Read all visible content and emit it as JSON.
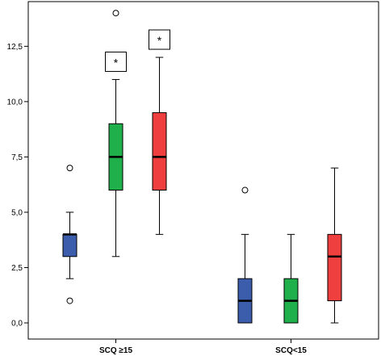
{
  "chart_data": {
    "type": "boxplot",
    "categories": [
      "SCQ ≥15",
      "SCQ<15"
    ],
    "y_tick_labels": [
      "0,0",
      "2,5",
      "5,0",
      "7,5",
      "10,0",
      "12,5"
    ],
    "y_ticks": [
      0,
      2.5,
      5,
      7.5,
      10,
      12.5
    ],
    "ylim": [
      0,
      14.3
    ],
    "grid": false,
    "colors": [
      "#3b5dab",
      "#20b04b",
      "#ef3f3f"
    ],
    "boxes": [
      {
        "category": "SCQ ≥15",
        "color": "#3b5dab",
        "whisker_low": 2,
        "q1": 3,
        "median": 4,
        "q3": 4,
        "whisker_high": 5,
        "outliers": [
          1,
          7
        ]
      },
      {
        "category": "SCQ ≥15",
        "color": "#20b04b",
        "whisker_low": 3,
        "q1": 6,
        "median": 7.5,
        "q3": 9,
        "whisker_high": 11,
        "outliers": [
          14
        ]
      },
      {
        "category": "SCQ ≥15",
        "color": "#ef3f3f",
        "whisker_low": 4,
        "q1": 6,
        "median": 7.5,
        "q3": 9.5,
        "whisker_high": 12,
        "outliers": []
      },
      {
        "category": "SCQ<15",
        "color": "#3b5dab",
        "whisker_low": 0,
        "q1": 0,
        "median": 1,
        "q3": 2,
        "whisker_high": 4,
        "outliers": [
          6
        ]
      },
      {
        "category": "SCQ<15",
        "color": "#20b04b",
        "whisker_low": 0,
        "q1": 0,
        "median": 1,
        "q3": 2,
        "whisker_high": 4,
        "outliers": []
      },
      {
        "category": "SCQ<15",
        "color": "#ef3f3f",
        "whisker_low": 0,
        "q1": 1,
        "median": 3,
        "q3": 4,
        "whisker_high": 7,
        "outliers": []
      }
    ],
    "annotations": [
      {
        "text": "*",
        "box": 1
      },
      {
        "text": "*",
        "box": 2
      }
    ]
  }
}
